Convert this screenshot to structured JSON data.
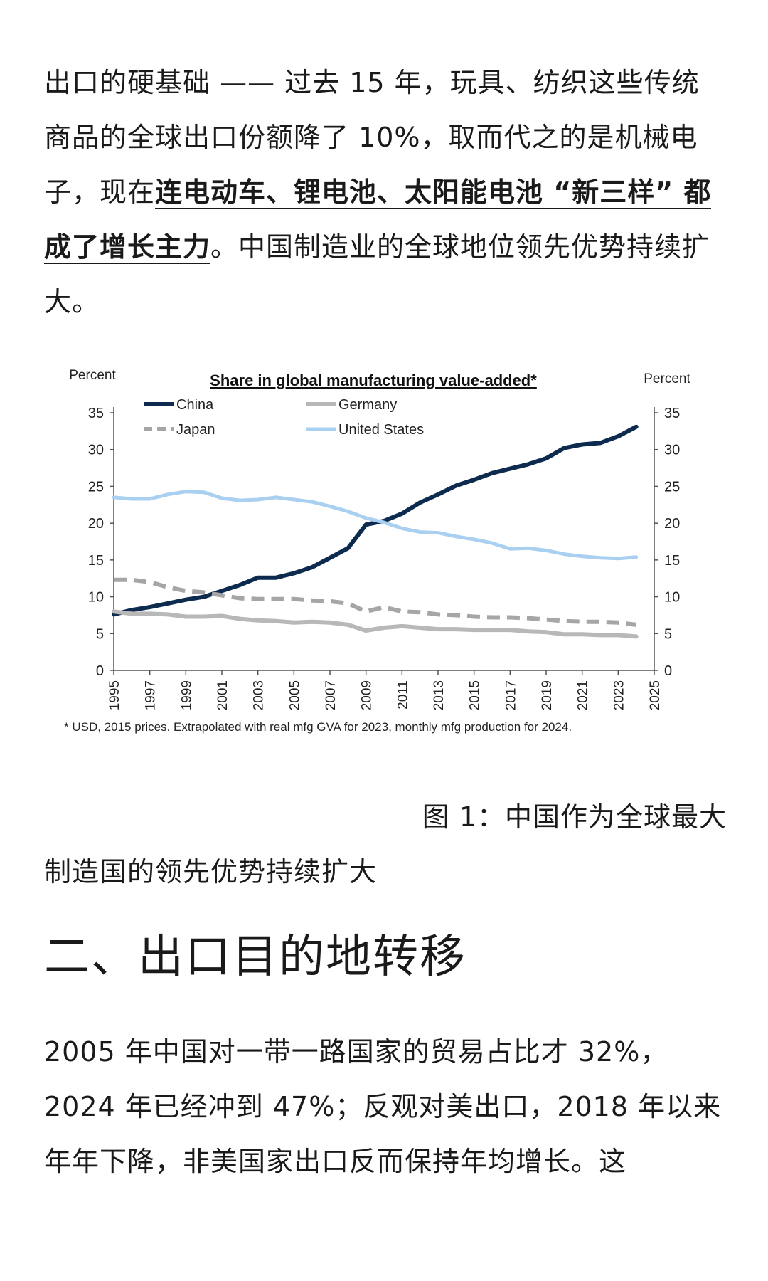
{
  "article": {
    "para1": {
      "part1": "出口的硬基础 —— 过去 15 年，玩具、纺织这些传统商品的全球出口份额降了 10%，取而代之的是机械电子，现在",
      "highlight": "连电动车、锂电池、太阳能电池 “新三样” 都成了增长主力",
      "part2": "。中国制造业的全球地位领先优势持续扩大。"
    },
    "caption": {
      "line1": "图 1：中国作为全球最大",
      "line2": "制造国的领先优势持续扩大"
    },
    "heading": "二、出口目的地转移",
    "para2": "2005 年中国对一带一路国家的贸易占比才 32%，2024 年已经冲到 47%；反观对美出口，2018 年以来年年下降，非美国家出口反而保持年均增长。这"
  },
  "chart_data": {
    "type": "line",
    "title": "Share in global manufacturing value-added*",
    "ylabel_left": "Percent",
    "ylabel_right": "Percent",
    "footnote": "* USD, 2015 prices. Extrapolated with real mfg GVA for 2023, monthly mfg production for 2024.",
    "xlim": [
      1995,
      2025
    ],
    "ylim": [
      0,
      35
    ],
    "x_ticks": [
      "1995",
      "1997",
      "1999",
      "2001",
      "2003",
      "2005",
      "2007",
      "2009",
      "2011",
      "2013",
      "2015",
      "2017",
      "2019",
      "2021",
      "2023",
      "2025"
    ],
    "y_ticks": [
      "0",
      "5",
      "10",
      "15",
      "20",
      "25",
      "30",
      "35"
    ],
    "grid": false,
    "legend_position": "top",
    "x": [
      1995,
      1996,
      1997,
      1998,
      1999,
      2000,
      2001,
      2002,
      2003,
      2004,
      2005,
      2006,
      2007,
      2008,
      2009,
      2010,
      2011,
      2012,
      2013,
      2014,
      2015,
      2016,
      2017,
      2018,
      2019,
      2020,
      2021,
      2022,
      2023,
      2024
    ],
    "series": [
      {
        "name": "China",
        "color": "#0d2b4e",
        "dash": "solid",
        "width": 6,
        "values": [
          7.6,
          8.2,
          8.6,
          9.1,
          9.6,
          10.0,
          10.8,
          11.6,
          12.6,
          12.6,
          13.2,
          14.0,
          15.3,
          16.6,
          19.8,
          20.3,
          21.3,
          22.8,
          23.9,
          25.1,
          25.9,
          26.8,
          27.4,
          28.0,
          28.8,
          30.2,
          30.7,
          30.9,
          31.8,
          33.1
        ]
      },
      {
        "name": "Germany",
        "color": "#b8b8b8",
        "dash": "solid",
        "width": 6,
        "values": [
          8.0,
          7.7,
          7.7,
          7.6,
          7.3,
          7.3,
          7.4,
          7.0,
          6.8,
          6.7,
          6.5,
          6.6,
          6.5,
          6.2,
          5.4,
          5.8,
          6.0,
          5.8,
          5.6,
          5.6,
          5.5,
          5.5,
          5.5,
          5.3,
          5.2,
          4.9,
          4.9,
          4.8,
          4.8,
          4.6
        ]
      },
      {
        "name": "Japan",
        "color": "#a6a6a6",
        "dash": "dashed",
        "width": 6,
        "values": [
          12.3,
          12.3,
          12.0,
          11.3,
          10.8,
          10.6,
          10.2,
          9.8,
          9.7,
          9.7,
          9.7,
          9.5,
          9.4,
          9.1,
          8.0,
          8.6,
          8.0,
          7.9,
          7.6,
          7.5,
          7.3,
          7.2,
          7.2,
          7.1,
          6.9,
          6.7,
          6.6,
          6.6,
          6.5,
          6.2
        ]
      },
      {
        "name": "United States",
        "color": "#a9d0f0",
        "dash": "solid",
        "width": 5,
        "values": [
          23.5,
          23.3,
          23.3,
          23.9,
          24.3,
          24.2,
          23.4,
          23.1,
          23.2,
          23.5,
          23.2,
          22.9,
          22.3,
          21.6,
          20.7,
          20.1,
          19.3,
          18.8,
          18.7,
          18.2,
          17.8,
          17.3,
          16.5,
          16.6,
          16.3,
          15.8,
          15.5,
          15.3,
          15.2,
          15.4
        ]
      }
    ]
  }
}
